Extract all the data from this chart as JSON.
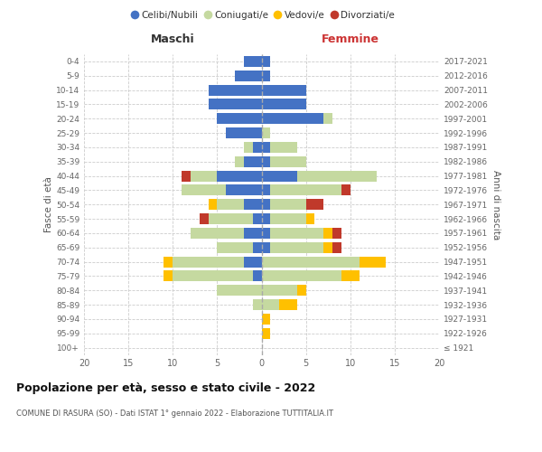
{
  "age_groups": [
    "100+",
    "95-99",
    "90-94",
    "85-89",
    "80-84",
    "75-79",
    "70-74",
    "65-69",
    "60-64",
    "55-59",
    "50-54",
    "45-49",
    "40-44",
    "35-39",
    "30-34",
    "25-29",
    "20-24",
    "15-19",
    "10-14",
    "5-9",
    "0-4"
  ],
  "birth_years": [
    "≤ 1921",
    "1922-1926",
    "1927-1931",
    "1932-1936",
    "1937-1941",
    "1942-1946",
    "1947-1951",
    "1952-1956",
    "1957-1961",
    "1962-1966",
    "1967-1971",
    "1972-1976",
    "1977-1981",
    "1982-1986",
    "1987-1991",
    "1992-1996",
    "1997-2001",
    "2002-2006",
    "2007-2011",
    "2012-2016",
    "2017-2021"
  ],
  "maschi": {
    "celibi": [
      0,
      0,
      0,
      0,
      0,
      1,
      2,
      1,
      2,
      1,
      2,
      4,
      5,
      2,
      1,
      4,
      5,
      6,
      6,
      3,
      2
    ],
    "coniugati": [
      0,
      0,
      0,
      1,
      5,
      9,
      8,
      4,
      6,
      5,
      3,
      5,
      3,
      1,
      1,
      0,
      0,
      0,
      0,
      0,
      0
    ],
    "vedovi": [
      0,
      0,
      0,
      0,
      0,
      1,
      1,
      0,
      0,
      0,
      1,
      0,
      0,
      0,
      0,
      0,
      0,
      0,
      0,
      0,
      0
    ],
    "divorziati": [
      0,
      0,
      0,
      0,
      0,
      0,
      0,
      0,
      0,
      1,
      0,
      0,
      1,
      0,
      0,
      0,
      0,
      0,
      0,
      0,
      0
    ]
  },
  "femmine": {
    "nubili": [
      0,
      0,
      0,
      0,
      0,
      0,
      0,
      1,
      1,
      1,
      1,
      1,
      4,
      1,
      1,
      0,
      7,
      5,
      5,
      1,
      1
    ],
    "coniugate": [
      0,
      0,
      0,
      2,
      4,
      9,
      11,
      6,
      6,
      4,
      4,
      8,
      9,
      4,
      3,
      1,
      1,
      0,
      0,
      0,
      0
    ],
    "vedove": [
      0,
      1,
      1,
      2,
      1,
      2,
      3,
      1,
      1,
      1,
      0,
      0,
      0,
      0,
      0,
      0,
      0,
      0,
      0,
      0,
      0
    ],
    "divorziate": [
      0,
      0,
      0,
      0,
      0,
      0,
      0,
      1,
      1,
      0,
      2,
      1,
      0,
      0,
      0,
      0,
      0,
      0,
      0,
      0,
      0
    ]
  },
  "colors": {
    "celibi_nubili": "#4472c4",
    "coniugati": "#c5d9a0",
    "vedovi": "#ffc000",
    "divorziati": "#c0392b"
  },
  "xlim": 20,
  "title": "Popolazione per età, sesso e stato civile - 2022",
  "subtitle": "COMUNE DI RASURA (SO) - Dati ISTAT 1° gennaio 2022 - Elaborazione TUTTITALIA.IT",
  "ylabel_left": "Fasce di età",
  "ylabel_right": "Anni di nascita",
  "xlabel_maschi": "Maschi",
  "xlabel_femmine": "Femmine",
  "bg_color": "#ffffff",
  "grid_color": "#cccccc",
  "legend_labels": [
    "Celibi/Nubili",
    "Coniugati/e",
    "Vedovi/e",
    "Divorziati/e"
  ]
}
